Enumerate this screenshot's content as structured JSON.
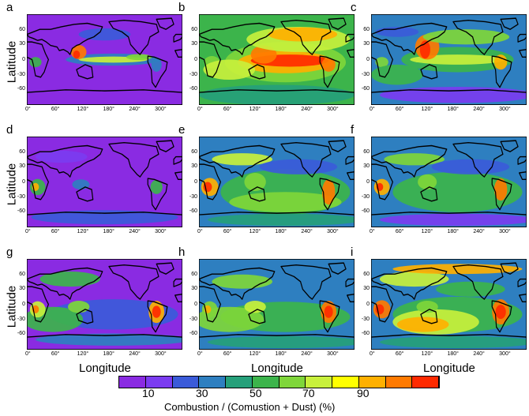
{
  "panels": [
    {
      "label": "a",
      "pattern": "a"
    },
    {
      "label": "b",
      "pattern": "b"
    },
    {
      "label": "c",
      "pattern": "c"
    },
    {
      "label": "d",
      "pattern": "d"
    },
    {
      "label": "e",
      "pattern": "e"
    },
    {
      "label": "f",
      "pattern": "f"
    },
    {
      "label": "g",
      "pattern": "g"
    },
    {
      "label": "h",
      "pattern": "h"
    },
    {
      "label": "i",
      "pattern": "i"
    }
  ],
  "axes": {
    "ylabel": "Latitude",
    "xlabel": "Longitude",
    "lat_ticks": [
      "60",
      "30",
      "0",
      "-30",
      "-60"
    ],
    "lon_ticks": [
      "0°",
      "60°",
      "120°",
      "180°",
      "240°",
      "300°"
    ]
  },
  "colorbar": {
    "title": "Combustion / (Comustion + Dust) (%)",
    "tick_labels": [
      "10",
      "30",
      "50",
      "70",
      "90"
    ],
    "colors": [
      "#8a2be2",
      "#7b3cf0",
      "#3b5bd9",
      "#2e7fc0",
      "#26a07a",
      "#3cb44b",
      "#7fd63a",
      "#c8f03c",
      "#ffff00",
      "#ffb000",
      "#ff7a00",
      "#ff2a00"
    ]
  }
}
